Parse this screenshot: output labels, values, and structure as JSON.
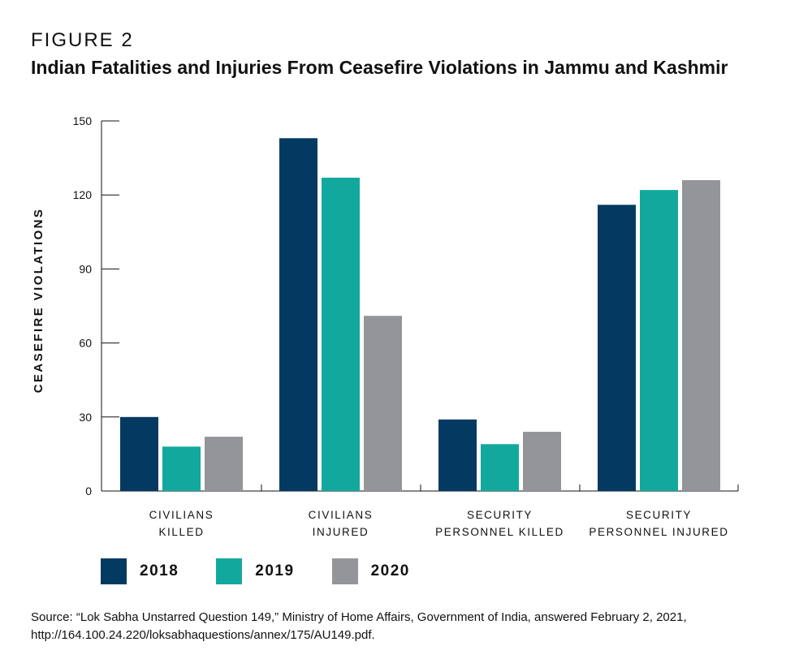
{
  "figure": {
    "label": "FIGURE 2",
    "title": "Indian Fatalities and Injuries From Ceasefire Violations in Jammu and Kashmir"
  },
  "chart_data": {
    "type": "bar",
    "title": "Indian Fatalities and Injuries From Ceasefire Violations in Jammu and Kashmir",
    "xlabel": "",
    "ylabel": "CEASEFIRE VIOLATIONS",
    "ylim": [
      0,
      150
    ],
    "yticks": [
      0,
      30,
      60,
      90,
      120,
      150
    ],
    "categories": [
      [
        "CIVILIANS",
        "KILLED"
      ],
      [
        "CIVILIANS",
        "INJURED"
      ],
      [
        "SECURITY",
        "PERSONNEL KILLED"
      ],
      [
        "SECURITY",
        "PERSONNEL INJURED"
      ]
    ],
    "series": [
      {
        "name": "2018",
        "color": "#043a61",
        "values": [
          30,
          143,
          29,
          116
        ]
      },
      {
        "name": "2019",
        "color": "#13a89e",
        "values": [
          18,
          127,
          19,
          122
        ]
      },
      {
        "name": "2020",
        "color": "#939598",
        "values": [
          22,
          71,
          24,
          126
        ]
      }
    ],
    "grid": false,
    "legend_position": "bottom-left"
  },
  "source": {
    "line1": "Source: “Lok Sabha Unstarred Question 149,” Ministry of Home Affairs, Government of India, answered February 2, 2021,",
    "line2": "http://164.100.24.220/loksabhaquestions/annex/175/AU149.pdf."
  }
}
